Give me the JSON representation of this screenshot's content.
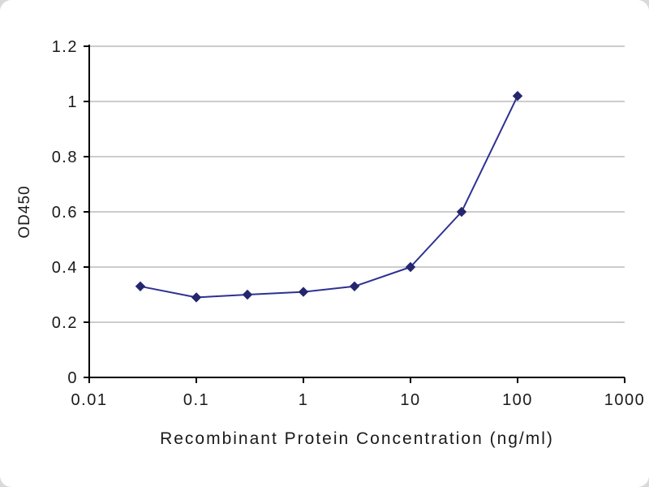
{
  "chart_data": {
    "type": "line",
    "title": "",
    "xlabel": "Recombinant Protein Concentration (ng/ml)",
    "ylabel": "OD450",
    "x_scale": "log",
    "xlim": [
      0.01,
      1000
    ],
    "ylim": [
      0,
      1.2
    ],
    "x_ticks": [
      "0.01",
      "0.1",
      "1",
      "10",
      "100",
      "1000"
    ],
    "y_ticks": [
      "0",
      "0.2",
      "0.4",
      "0.6",
      "0.8",
      "1",
      "1.2"
    ],
    "grid": "horizontal",
    "legend": "none",
    "series": [
      {
        "name": "OD450",
        "marker": "diamond",
        "color": "#2e3192",
        "x": [
          0.03,
          0.1,
          0.3,
          1,
          3,
          10,
          30,
          100
        ],
        "y": [
          0.33,
          0.29,
          0.3,
          0.31,
          0.33,
          0.4,
          0.6,
          1.02
        ]
      }
    ]
  },
  "colors": {
    "line": "#2e3192",
    "marker": "#24276e",
    "grid": "#9a9a9a",
    "axis": "#000000",
    "text": "#1a1a1a",
    "background": "#ffffff"
  }
}
